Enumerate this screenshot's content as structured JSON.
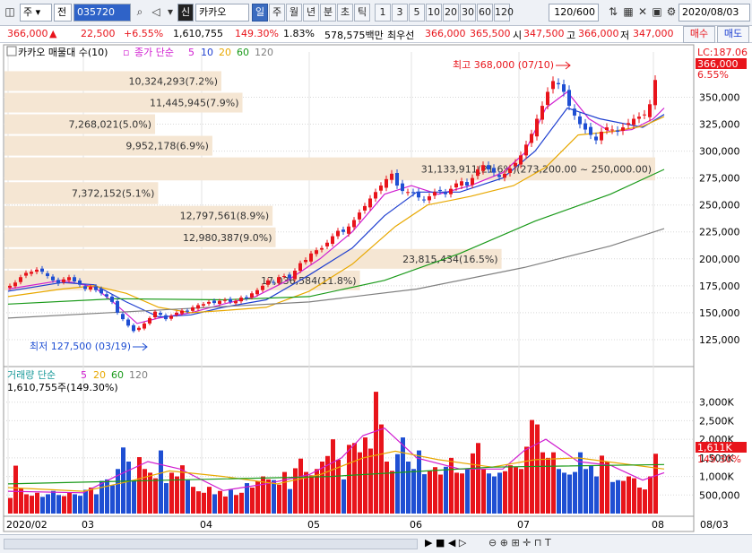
{
  "toolbar": {
    "period_type": "주",
    "market": "전",
    "code": "035720",
    "search_icon": "search-icon",
    "badge": "신",
    "stock_name": "카카오",
    "period_tabs": [
      "일",
      "주",
      "월",
      "년",
      "분",
      "초",
      "틱"
    ],
    "active_period": "일",
    "intervals": [
      "1",
      "3",
      "5",
      "10",
      "20",
      "30",
      "60",
      "120"
    ],
    "count": "120",
    "total": "/600",
    "date": "2020/08/03"
  },
  "quote": {
    "price": "366,000",
    "change": "22,500",
    "change_pct": "+6.55%",
    "volume": "1,610,755",
    "vol_ratio": "149.30%",
    "turnover": "1.83%",
    "amount": "578,575백만",
    "best_label": "최우선",
    "ask": "366,000",
    "bid": "365,500",
    "open_label": "시",
    "open": "347,500",
    "high_label": "고",
    "high": "366,000",
    "low_label": "저",
    "low": "347,000",
    "buy": "매수",
    "sell": "매도"
  },
  "colors": {
    "up": "#e8141b",
    "down": "#1f4fd3",
    "ma5": "#d01dd0",
    "ma10": "#1f3fd0",
    "ma20": "#e8a800",
    "ma60": "#1a9a1a",
    "ma120": "#808080",
    "profile": "#f5e6d3"
  },
  "chart_data": [
    {
      "type": "candlestick",
      "title": "카카오 매물대 수(10)",
      "legend": {
        "price_label": "종가 단순",
        "periods": [
          "5",
          "10",
          "20",
          "60",
          "120"
        ]
      },
      "lc_label": "LC:187.06",
      "current_price": "366,000",
      "current_pct": "6.55%",
      "ylim": [
        105000,
        392000
      ],
      "y_ticks": [
        {
          "v": 350000,
          "t": "350,000"
        },
        {
          "v": 325000,
          "t": "325,000"
        },
        {
          "v": 300000,
          "t": "300,000"
        },
        {
          "v": 275000,
          "t": "275,000"
        },
        {
          "v": 250000,
          "t": "250,000"
        },
        {
          "v": 225000,
          "t": "225,000"
        },
        {
          "v": 200000,
          "t": "200,000"
        },
        {
          "v": 175000,
          "t": "175,000"
        },
        {
          "v": 150000,
          "t": "150,000"
        },
        {
          "v": 125000,
          "t": "125,000"
        }
      ],
      "volume_profile": [
        {
          "lo": 355000,
          "hi": 375000,
          "label": "10,324,293(7.2%)"
        },
        {
          "lo": 335000,
          "hi": 355000,
          "label": "11,445,945(7.9%)"
        },
        {
          "lo": 315000,
          "hi": 335000,
          "label": "7,268,021(5.0%)"
        },
        {
          "lo": 295000,
          "hi": 315000,
          "label": "9,952,178(6.9%)"
        },
        {
          "lo": 272000,
          "hi": 295000,
          "label": "31,133,911(21.6%)(273,200.00 ~ 250,000.00)",
          "highlight": true
        },
        {
          "lo": 250000,
          "hi": 272000,
          "label": "7,372,152(5.1%)"
        },
        {
          "lo": 230000,
          "hi": 250000,
          "label": "12,797,561(8.9%)"
        },
        {
          "lo": 210000,
          "hi": 230000,
          "label": "12,980,387(9.0%)"
        },
        {
          "lo": 190000,
          "hi": 210000,
          "label": "23,815,434(16.5%)"
        },
        {
          "lo": 170000,
          "hi": 190000,
          "label": "17,036,584(11.8%)"
        }
      ],
      "high_annotation": "최고 368,000 (07/10)",
      "low_annotation": "최저 127,500 (03/19)",
      "x_labels": [
        "2020/02",
        "03",
        "04",
        "05",
        "06",
        "07",
        "08"
      ],
      "x_label_index": [
        0,
        14,
        36,
        56,
        75,
        95,
        120
      ],
      "right_x_label": "08/03",
      "closes": [
        175000,
        178000,
        183000,
        187000,
        188000,
        190000,
        188000,
        184000,
        180000,
        177000,
        181000,
        183000,
        179000,
        176000,
        172000,
        174000,
        171000,
        168000,
        165000,
        160000,
        150000,
        144000,
        138000,
        133000,
        136000,
        140000,
        145000,
        151000,
        148000,
        144000,
        147000,
        150000,
        152000,
        151000,
        155000,
        157000,
        158000,
        160000,
        159000,
        161000,
        162000,
        160000,
        161000,
        164000,
        163000,
        168000,
        171000,
        175000,
        180000,
        178000,
        183000,
        184000,
        182000,
        189000,
        196000,
        199000,
        205000,
        208000,
        210000,
        215000,
        221000,
        226000,
        225000,
        230000,
        236000,
        243000,
        249000,
        256000,
        262000,
        268000,
        274000,
        279000,
        268000,
        263000,
        262000,
        261000,
        257000,
        255000,
        258000,
        262000,
        263000,
        260000,
        265000,
        270000,
        272000,
        268000,
        275000,
        283000,
        287000,
        283000,
        280000,
        276000,
        279000,
        284000,
        289000,
        296000,
        306000,
        316000,
        330000,
        342000,
        355000,
        365000,
        362000,
        355000,
        342000,
        333000,
        325000,
        320000,
        315000,
        310000,
        318000,
        322000,
        320000,
        318000,
        322000,
        326000,
        330000,
        332000,
        334000,
        343500,
        366000
      ],
      "ma_lines": [
        {
          "name": "5",
          "points": [
            [
              0,
              172000
            ],
            [
              10,
              180000
            ],
            [
              16,
              174000
            ],
            [
              20,
              158000
            ],
            [
              24,
              140000
            ],
            [
              28,
              145000
            ],
            [
              34,
              150000
            ],
            [
              40,
              158000
            ],
            [
              46,
              165000
            ],
            [
              52,
              180000
            ],
            [
              58,
              200000
            ],
            [
              64,
              225000
            ],
            [
              70,
              260000
            ],
            [
              75,
              268000
            ],
            [
              80,
              260000
            ],
            [
              86,
              268000
            ],
            [
              92,
              280000
            ],
            [
              96,
              298000
            ],
            [
              100,
              340000
            ],
            [
              104,
              355000
            ],
            [
              108,
              330000
            ],
            [
              112,
              318000
            ],
            [
              116,
              320000
            ],
            [
              120,
              330000
            ],
            [
              122,
              340000
            ]
          ]
        },
        {
          "name": "10",
          "points": [
            [
              0,
              170000
            ],
            [
              10,
              178000
            ],
            [
              16,
              176000
            ],
            [
              22,
              160000
            ],
            [
              28,
              146000
            ],
            [
              34,
              148000
            ],
            [
              40,
              155000
            ],
            [
              48,
              162000
            ],
            [
              56,
              185000
            ],
            [
              64,
              210000
            ],
            [
              70,
              240000
            ],
            [
              76,
              262000
            ],
            [
              84,
              262000
            ],
            [
              92,
              275000
            ],
            [
              98,
              300000
            ],
            [
              104,
              340000
            ],
            [
              110,
              330000
            ],
            [
              118,
              322000
            ],
            [
              122,
              334000
            ]
          ]
        },
        {
          "name": "20",
          "points": [
            [
              0,
              165000
            ],
            [
              10,
              172000
            ],
            [
              16,
              175000
            ],
            [
              22,
              168000
            ],
            [
              28,
              155000
            ],
            [
              34,
              150000
            ],
            [
              40,
              152000
            ],
            [
              48,
              155000
            ],
            [
              56,
              170000
            ],
            [
              64,
              195000
            ],
            [
              72,
              230000
            ],
            [
              78,
              250000
            ],
            [
              86,
              258000
            ],
            [
              94,
              268000
            ],
            [
              100,
              285000
            ],
            [
              106,
              315000
            ],
            [
              112,
              318000
            ],
            [
              118,
              323000
            ],
            [
              122,
              332000
            ]
          ]
        },
        {
          "name": "60",
          "points": [
            [
              0,
              158000
            ],
            [
              20,
              163000
            ],
            [
              40,
              162000
            ],
            [
              56,
              165000
            ],
            [
              70,
              180000
            ],
            [
              84,
              205000
            ],
            [
              98,
              235000
            ],
            [
              112,
              260000
            ],
            [
              122,
              283000
            ]
          ]
        },
        {
          "name": "120",
          "points": [
            [
              0,
              145000
            ],
            [
              30,
              153000
            ],
            [
              56,
              160000
            ],
            [
              76,
              172000
            ],
            [
              96,
              192000
            ],
            [
              112,
              212000
            ],
            [
              122,
              228000
            ]
          ]
        }
      ]
    },
    {
      "type": "bar",
      "title": "거래량 단순",
      "legend_periods": [
        "5",
        "20",
        "60",
        "120"
      ],
      "current_volume": "1,610,755주(149.30%)",
      "right_badge": "1,611K",
      "right_pct": "149.30%",
      "ylim": [
        0,
        3500000
      ],
      "y_ticks": [
        {
          "v": 3000000,
          "t": "3,000K"
        },
        {
          "v": 2500000,
          "t": "2,500K"
        },
        {
          "v": 2000000,
          "t": "2,000K"
        },
        {
          "v": 1500000,
          "t": "1,500K"
        },
        {
          "v": 1000000,
          "t": "1,000K"
        },
        {
          "v": 500000,
          "t": "500,000"
        }
      ],
      "volumes": [
        420000,
        1290000,
        680000,
        520000,
        480000,
        560000,
        450000,
        520000,
        610000,
        500000,
        470000,
        560000,
        520000,
        480000,
        640000,
        700000,
        520000,
        880000,
        920000,
        760000,
        1200000,
        1780000,
        1400000,
        900000,
        1520000,
        1200000,
        1100000,
        950000,
        1700000,
        820000,
        1100000,
        1000000,
        1300000,
        900000,
        720000,
        600000,
        560000,
        720000,
        520000,
        610000,
        460000,
        640000,
        500000,
        560000,
        820000,
        700000,
        880000,
        1000000,
        920000,
        900000,
        780000,
        1120000,
        660000,
        1220000,
        1480000,
        1120000,
        1030000,
        1200000,
        1400000,
        1550000,
        2000000,
        1450000,
        920000,
        1850000,
        1900000,
        1650000,
        2050000,
        1750000,
        3280000,
        2400000,
        1400000,
        1150000,
        1600000,
        2050000,
        1400000,
        1200000,
        1700000,
        1060000,
        1150000,
        1250000,
        1050000,
        1260000,
        1500000,
        1100000,
        1080000,
        1200000,
        1620000,
        1900000,
        1200000,
        1080000,
        1000000,
        1100000,
        1140000,
        1300000,
        1250000,
        1200000,
        1800000,
        2520000,
        2400000,
        1650000,
        1500000,
        1650000,
        1200000,
        1100000,
        1050000,
        1120000,
        1650000,
        1200000,
        1300000,
        1000000,
        1560000,
        1400000,
        850000,
        900000,
        880000,
        1000000,
        950000,
        700000,
        650000,
        1000000,
        1610755
      ],
      "ma_lines": [
        {
          "name": "5",
          "points": [
            [
              0,
              600000
            ],
            [
              14,
              560000
            ],
            [
              20,
              1000000
            ],
            [
              26,
              1400000
            ],
            [
              32,
              1200000
            ],
            [
              40,
              620000
            ],
            [
              48,
              800000
            ],
            [
              56,
              1050000
            ],
            [
              62,
              1500000
            ],
            [
              66,
              2100000
            ],
            [
              70,
              2300000
            ],
            [
              76,
              1500000
            ],
            [
              84,
              1200000
            ],
            [
              92,
              1200000
            ],
            [
              96,
              1700000
            ],
            [
              100,
              2000000
            ],
            [
              106,
              1400000
            ],
            [
              112,
              1300000
            ],
            [
              118,
              900000
            ],
            [
              122,
              1100000
            ]
          ]
        },
        {
          "name": "20",
          "points": [
            [
              0,
              700000
            ],
            [
              14,
              600000
            ],
            [
              22,
              850000
            ],
            [
              30,
              1150000
            ],
            [
              40,
              1000000
            ],
            [
              50,
              800000
            ],
            [
              58,
              1050000
            ],
            [
              66,
              1500000
            ],
            [
              72,
              1680000
            ],
            [
              80,
              1450000
            ],
            [
              90,
              1250000
            ],
            [
              98,
              1450000
            ],
            [
              106,
              1500000
            ],
            [
              114,
              1350000
            ],
            [
              122,
              1200000
            ]
          ]
        },
        {
          "name": "60",
          "points": [
            [
              0,
              800000
            ],
            [
              30,
              900000
            ],
            [
              60,
              1000000
            ],
            [
              90,
              1250000
            ],
            [
              122,
              1320000
            ]
          ]
        }
      ]
    }
  ]
}
